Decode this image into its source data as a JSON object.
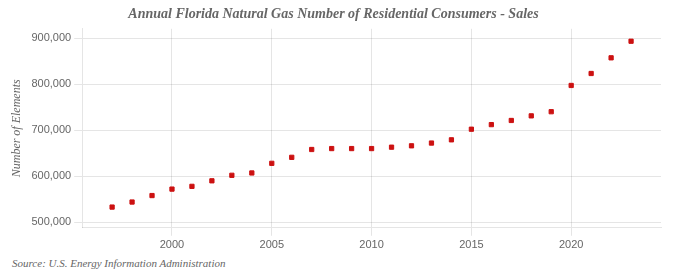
{
  "chart_data": {
    "type": "scatter",
    "title": "Annual Florida Natural Gas Number of Residential Consumers - Sales",
    "ylabel": "Number of Elements",
    "annotations": [
      "Source: U.S. Energy Information Administration"
    ],
    "x": [
      1997,
      1998,
      1999,
      2000,
      2001,
      2002,
      2003,
      2004,
      2005,
      2006,
      2007,
      2008,
      2009,
      2010,
      2011,
      2012,
      2013,
      2014,
      2015,
      2016,
      2017,
      2018,
      2019,
      2020,
      2021,
      2022,
      2023
    ],
    "values": [
      533000,
      544000,
      558000,
      572000,
      578000,
      590000,
      602000,
      607000,
      628000,
      641000,
      658000,
      660000,
      660000,
      660000,
      663000,
      666000,
      672000,
      679000,
      702000,
      712000,
      721000,
      731000,
      740000,
      797000,
      823000,
      857000,
      893000
    ],
    "color": "#cc1111",
    "marker": "square",
    "xlim": [
      1995.5,
      2024.5
    ],
    "xticks": [
      2000,
      2005,
      2010,
      2015,
      2020
    ],
    "ylim": [
      488000,
      920000
    ],
    "yticks": [
      {
        "value": 500000,
        "label": "500,000"
      },
      {
        "value": 600000,
        "label": "600,000"
      },
      {
        "value": 700000,
        "label": "700,000"
      },
      {
        "value": 800000,
        "label": "800,000"
      },
      {
        "value": 900000,
        "label": "900,000"
      }
    ],
    "grid": true
  }
}
